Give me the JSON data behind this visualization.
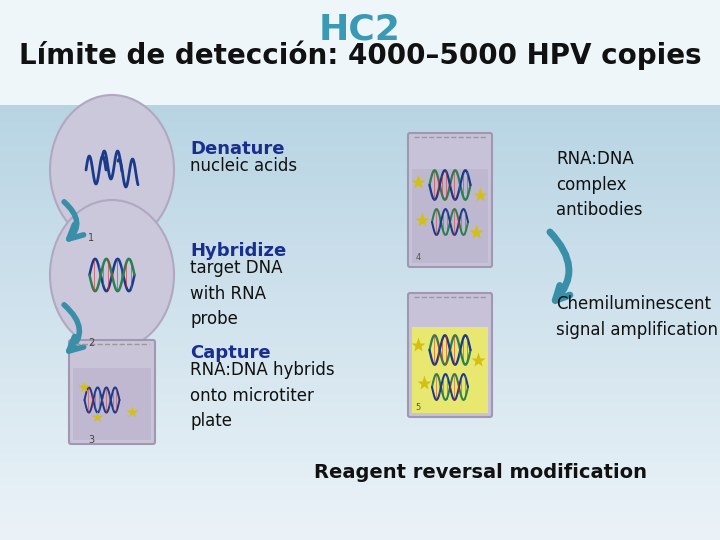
{
  "title": "HC2",
  "subtitle": "Límite de detección: 4000–5000 HPV copies",
  "title_color": "#3a9ab5",
  "subtitle_color": "#111111",
  "bg_color_top": "#eaf4f8",
  "bg_color_bottom": "#7ab8cc",
  "title_fontsize": 26,
  "subtitle_fontsize": 20,
  "step1_header": "Denature",
  "step1_body": "nucleic acids",
  "step2_header": "Hybridize",
  "step2_body": "target DNA\nwith RNA\nprobe",
  "step3_header": "Capture",
  "step3_body": "RNA:DNA hybrids\nonto microtiter\nplate",
  "right1_body": "RNA:DNA\ncomplex\nantibodies",
  "right2_body": "Chemiluminescent\nsignal amplification",
  "footer": "Reagent reversal modification",
  "step_header_color": "#1a2e8f",
  "step_body_color": "#111111",
  "right_body_color": "#111111",
  "footer_color": "#111111",
  "oval_fill": "#ccc8dc",
  "oval_edge": "#b0a8c0",
  "tube_fill": "#cac4d8",
  "tube_edge": "#a098b0",
  "tube_fill_right": "#c8c0d8",
  "tube_liq_right1": "#c4bcdc",
  "tube_liq_right2": "#e8e870",
  "arrow_color": "#3a8fa8",
  "dna_blue": "#1a3a8a",
  "dna_green": "#2a8050",
  "star_color": "#d4c010"
}
